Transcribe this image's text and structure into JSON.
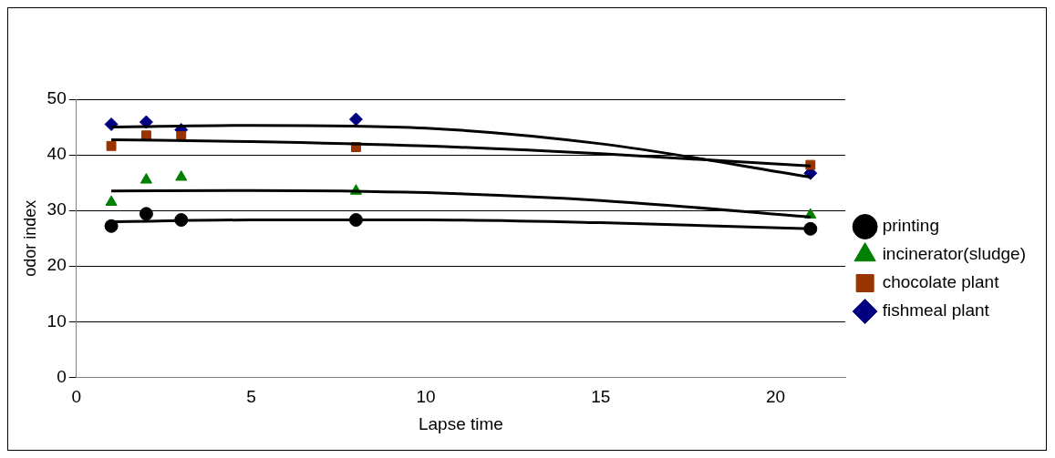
{
  "chart_data": {
    "type": "scatter",
    "xlabel": "Lapse time",
    "ylabel": "odor index",
    "x": [
      1,
      2,
      3,
      8,
      21
    ],
    "xlim": [
      0,
      22
    ],
    "xticks": [
      0,
      5,
      10,
      15,
      20
    ],
    "ylim": [
      0,
      50
    ],
    "yticks": [
      0,
      10,
      20,
      30,
      40,
      50
    ],
    "grid": "y",
    "legend": "right",
    "series": [
      {
        "name": "fishmeal plant",
        "color": "#000080",
        "marker": "diamond",
        "values": [
          45.5,
          45.9,
          44.5,
          46.4,
          36.7
        ]
      },
      {
        "name": "chocolate plant",
        "color": "#993300",
        "marker": "square",
        "values": [
          41.6,
          43.5,
          43.4,
          41.4,
          38.2
        ]
      },
      {
        "name": "incinerator(sludge)",
        "color": "#008000",
        "marker": "triangle",
        "values": [
          31.5,
          35.5,
          36,
          33.5,
          29.2
        ]
      },
      {
        "name": "printing",
        "color": "#000000",
        "marker": "circle",
        "values": [
          27.2,
          29.4,
          28.3,
          28.3,
          26.7
        ]
      },
      {
        "type": "line",
        "color": "#000000",
        "marker": "none",
        "line_style": "solid",
        "x": [
          1,
          5,
          10,
          15,
          21
        ],
        "values": [
          45,
          45.3,
          44.8,
          42,
          36
        ]
      },
      {
        "type": "line",
        "color": "#000000",
        "marker": "none",
        "line_style": "solid",
        "x": [
          1,
          5,
          10,
          15,
          21
        ],
        "values": [
          42.7,
          42.4,
          41.6,
          40.2,
          38
        ]
      },
      {
        "type": "line",
        "color": "#000000",
        "marker": "none",
        "line_style": "solid",
        "x": [
          1,
          5,
          10,
          15,
          21
        ],
        "values": [
          33.5,
          33.6,
          33.2,
          31.8,
          28.8
        ]
      },
      {
        "type": "line",
        "color": "#000000",
        "marker": "none",
        "line_style": "solid",
        "x": [
          1,
          5,
          10,
          15,
          21
        ],
        "values": [
          28,
          28.3,
          28.3,
          27.8,
          26.7
        ]
      }
    ]
  }
}
